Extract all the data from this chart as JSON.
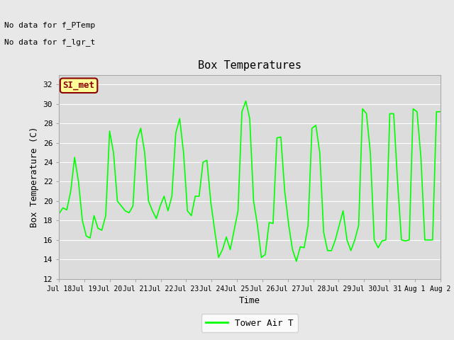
{
  "title": "Box Temperatures",
  "xlabel": "Time",
  "ylabel": "Box Temperature (C)",
  "ylim": [
    12,
    33
  ],
  "yticks": [
    12,
    14,
    16,
    18,
    20,
    22,
    24,
    26,
    28,
    30,
    32
  ],
  "no_data_lines": [
    "No data for f_PTemp",
    "No data for f_lgr_t"
  ],
  "annotation_text": "SI_met",
  "legend_label": "Tower Air T",
  "line_color": "#00FF00",
  "bg_color": "#E8E8E8",
  "plot_bg_color": "#DCDCDC",
  "annotation_bg": "#FFFF99",
  "annotation_border": "#8B0000",
  "annotation_text_color": "#8B0000",
  "xtick_labels": [
    "Jul 18",
    "Jul 19",
    "Jul 20",
    "Jul 21",
    "Jul 22",
    "Jul 23",
    "Jul 24",
    "Jul 25",
    "Jul 26",
    "Jul 27",
    "Jul 28",
    "Jul 29",
    "Jul 30",
    "Jul 31",
    "Aug 1",
    "Aug 2"
  ],
  "tower_air_t": [
    18.7,
    19.3,
    19.1,
    21.0,
    24.5,
    22.0,
    18.0,
    16.4,
    16.2,
    18.5,
    17.2,
    17.0,
    18.5,
    27.2,
    25.0,
    20.0,
    19.5,
    19.0,
    18.8,
    19.5,
    26.3,
    27.5,
    25.0,
    20.0,
    19.0,
    18.2,
    19.5,
    20.5,
    19.0,
    20.5,
    27.0,
    28.5,
    25.0,
    19.0,
    18.5,
    20.5,
    20.5,
    24.0,
    24.2,
    19.9,
    17.0,
    14.2,
    15.0,
    16.3,
    15.0,
    17.0,
    19.0,
    29.2,
    30.3,
    28.5,
    20.0,
    17.5,
    14.2,
    14.5,
    17.8,
    17.7,
    26.5,
    26.6,
    21.0,
    17.6,
    15.0,
    13.8,
    15.3,
    15.2,
    17.5,
    27.5,
    27.8,
    25.0,
    16.8,
    14.9,
    14.9,
    16.0,
    17.5,
    19.0,
    16.0,
    14.9,
    16.0,
    17.5,
    29.5,
    29.0,
    25.0,
    16.0,
    15.2,
    15.9,
    16.0,
    29.0,
    29.0,
    22.0,
    16.0,
    15.9,
    16.0,
    29.5,
    29.2,
    24.5,
    16.0,
    16.0,
    16.0,
    29.2,
    29.2
  ]
}
